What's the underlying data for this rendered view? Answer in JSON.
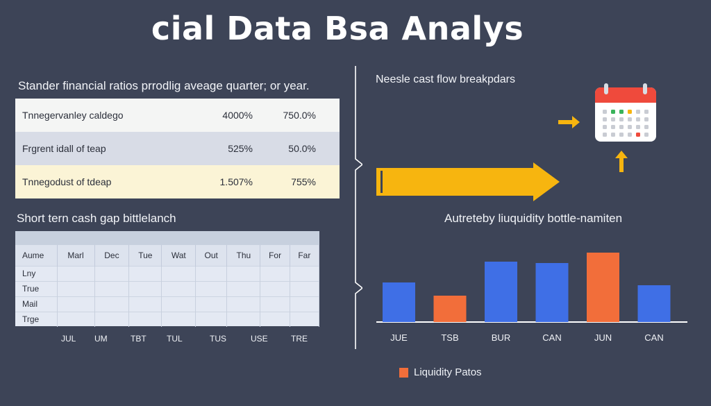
{
  "title": "cial Data Bsa Analys",
  "ratios": {
    "heading": "Stander financial ratios prrodlig aveage quarter; or year.",
    "rows": [
      {
        "label": "Tnnegervanley caldego",
        "a": "4000%",
        "b": "750.0%",
        "bg": "#f4f5f4"
      },
      {
        "label": "Frgrent idall of teap",
        "a": "525%",
        "b": "50.0%",
        "bg": "#d8dce6"
      },
      {
        "label": "Tnnegodust of tdeap",
        "a": "1.507%",
        "b": "755%",
        "bg": "#fbf4d6"
      }
    ]
  },
  "cash_gap": {
    "heading": "Short tern cash gap bittlelanch",
    "columns": [
      "Aume",
      "Marl",
      "Dec",
      "Tue",
      "Wat",
      "Out",
      "Thu",
      "For",
      "Far"
    ],
    "rows": [
      "Lny",
      "True",
      "Mail",
      "Trge"
    ],
    "months": [
      "JUL",
      "UM",
      "TBT",
      "TUL",
      "TUS",
      "USE",
      "TRE"
    ]
  },
  "cash_flow": {
    "heading": "Neesle cast flow breakpdars",
    "icons": [
      "arrow-right-icon",
      "calendar-icon",
      "arrow-up-icon"
    ]
  },
  "chart_data": {
    "type": "bar",
    "title": "Autreteby liuquidity bottle-namiten",
    "categories": [
      "JUE",
      "TSB",
      "BUR",
      "CAN",
      "JUN",
      "CAN"
    ],
    "values": [
      57,
      38,
      87,
      85,
      100,
      53
    ],
    "colors": [
      "#3f6fe6",
      "#f26e3a",
      "#3f6fe6",
      "#3f6fe6",
      "#f26e3a",
      "#3f6fe6"
    ],
    "ylim": [
      0,
      100
    ],
    "legend": {
      "label": "Liquidity Patos",
      "color": "#f26e3a",
      "position": "bottom"
    }
  },
  "colors": {
    "background": "#3d4457",
    "blue": "#3f6fe6",
    "orange": "#f26e3a",
    "yellow": "#f7b50f"
  }
}
